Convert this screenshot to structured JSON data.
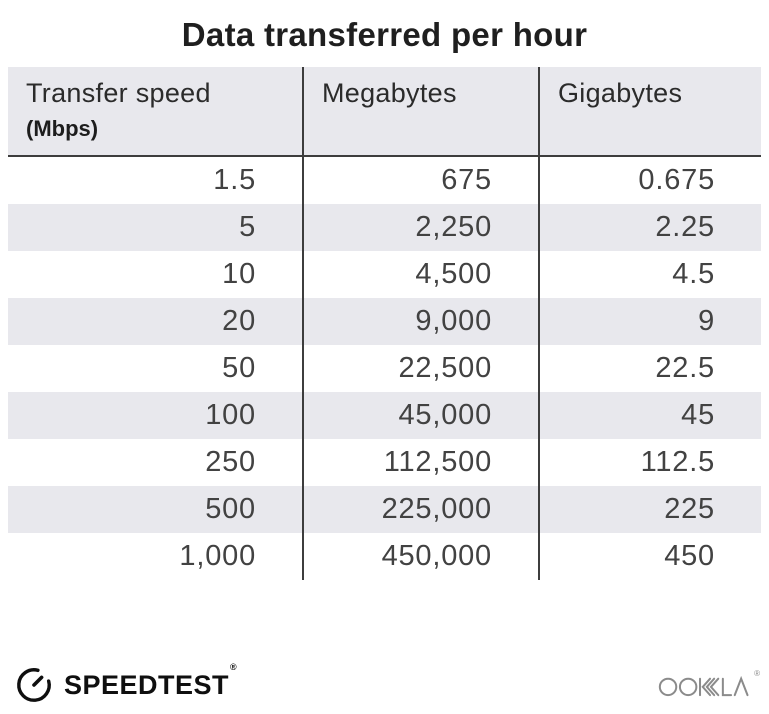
{
  "title": "Data transferred per hour",
  "table": {
    "columns": [
      {
        "label": "Transfer speed",
        "sublabel": "(Mbps)"
      },
      {
        "label": "Megabytes",
        "sublabel": ""
      },
      {
        "label": "Gigabytes",
        "sublabel": ""
      }
    ],
    "rows": [
      [
        "1.5",
        "675",
        "0.675"
      ],
      [
        "5",
        "2,250",
        "2.25"
      ],
      [
        "10",
        "4,500",
        "4.5"
      ],
      [
        "20",
        "9,000",
        "9"
      ],
      [
        "50",
        "22,500",
        "22.5"
      ],
      [
        "100",
        "45,000",
        "45"
      ],
      [
        "250",
        "112,500",
        "112.5"
      ],
      [
        "500",
        "225,000",
        "225"
      ],
      [
        "1,000",
        "450,000",
        "450"
      ]
    ]
  },
  "chart_data": {
    "type": "table",
    "title": "Data transferred per hour",
    "columns": [
      "Transfer speed (Mbps)",
      "Megabytes",
      "Gigabytes"
    ],
    "rows": [
      [
        1.5,
        675,
        0.675
      ],
      [
        5,
        2250,
        2.25
      ],
      [
        10,
        4500,
        4.5
      ],
      [
        20,
        9000,
        9
      ],
      [
        50,
        22500,
        22.5
      ],
      [
        100,
        45000,
        45
      ],
      [
        250,
        112500,
        112.5
      ],
      [
        500,
        225000,
        225
      ],
      [
        1000,
        450000,
        450
      ]
    ]
  },
  "footer": {
    "speedtest_label": "SPEEDTEST",
    "speedtest_mark": "®",
    "ookla_label": "OOKLA",
    "ookla_mark": "®"
  },
  "colors": {
    "background": "#ffffff",
    "header_bg": "#e8e8ed",
    "stripe_bg": "#e8e8ed",
    "divider": "#3d3d3d",
    "title_text": "#1f1f1f",
    "body_text": "#424242",
    "logo_black": "#0f0f0f",
    "ookla_gray": "#8b8b8b"
  }
}
